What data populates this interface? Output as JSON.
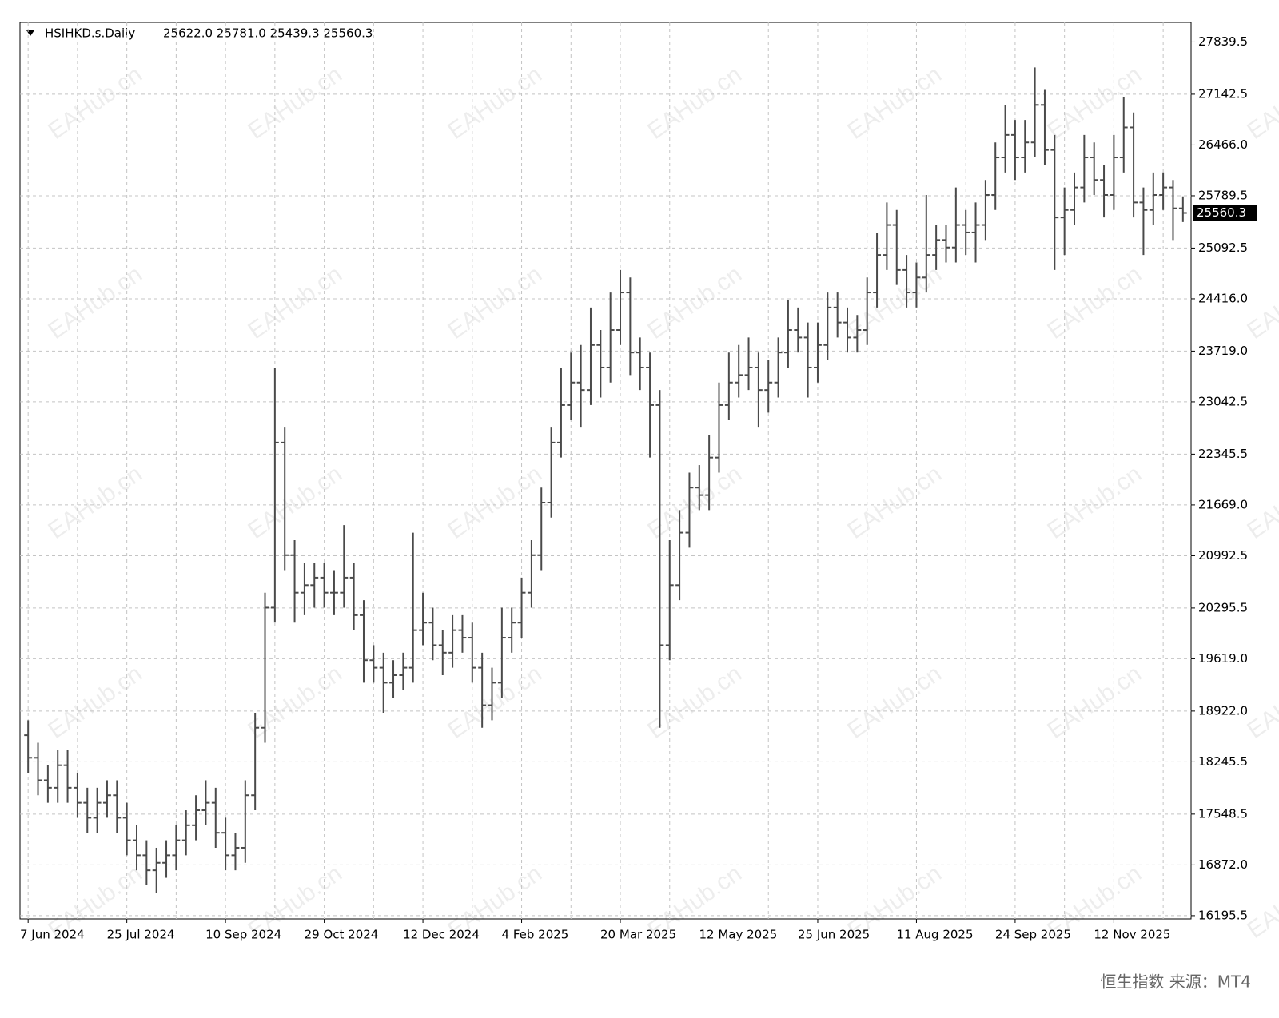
{
  "chart_data": {
    "type": "ohlc",
    "header": "HSIHKD.s.Daily",
    "header_values": "25622.0 25781.0 25439.3 25560.3",
    "watermark": "EAHub.cn",
    "footer": "恒生指数 来源：MT4",
    "color": "#4a4a4a",
    "grid": true,
    "current_price": {
      "value": 25560.3,
      "label": "25560.3"
    },
    "categories": [
      "7 Jun 2024",
      null,
      null,
      null,
      null,
      null,
      null,
      null,
      null,
      null,
      "25 Jul 2024",
      null,
      null,
      null,
      null,
      null,
      null,
      null,
      null,
      null,
      "10 Sep 2024",
      null,
      null,
      null,
      null,
      null,
      null,
      null,
      null,
      null,
      "29 Oct 2024",
      null,
      null,
      null,
      null,
      null,
      null,
      null,
      null,
      null,
      "12 Dec 2024",
      null,
      null,
      null,
      null,
      null,
      null,
      null,
      null,
      null,
      "4 Feb 2025",
      null,
      null,
      null,
      null,
      null,
      null,
      null,
      null,
      null,
      "20 Mar 2025",
      null,
      null,
      null,
      null,
      null,
      null,
      null,
      null,
      null,
      "12 May 2025",
      null,
      null,
      null,
      null,
      null,
      null,
      null,
      null,
      null,
      "25 Jun 2025",
      null,
      null,
      null,
      null,
      null,
      null,
      null,
      null,
      null,
      "11 Aug 2025",
      null,
      null,
      null,
      null,
      null,
      null,
      null,
      null,
      null,
      "24 Sep 2025",
      null,
      null,
      null,
      null,
      null,
      null,
      null,
      null,
      null,
      "12 Nov 2025",
      null,
      null,
      null,
      null,
      null,
      null,
      null
    ],
    "open": [
      18600,
      18300,
      18000,
      17900,
      18200,
      17900,
      17700,
      17500,
      17700,
      17800,
      17500,
      17200,
      17000,
      16800,
      16900,
      17000,
      17200,
      17400,
      17600,
      17700,
      17300,
      17000,
      17100,
      17800,
      18700,
      20300,
      22500,
      21000,
      20500,
      20600,
      20700,
      20500,
      20500,
      20700,
      20200,
      19600,
      19500,
      19300,
      19400,
      19500,
      20000,
      20100,
      19800,
      19700,
      20000,
      19900,
      19500,
      19000,
      19300,
      19900,
      20100,
      20500,
      21000,
      21700,
      22500,
      23000,
      23300,
      23200,
      23800,
      23500,
      24000,
      24500,
      23700,
      23500,
      23000,
      19800,
      20600,
      21300,
      21900,
      21800,
      22300,
      23000,
      23300,
      23400,
      23500,
      23200,
      23300,
      23700,
      24000,
      23900,
      23500,
      23800,
      24300,
      24100,
      23900,
      24000,
      24500,
      25000,
      25400,
      24800,
      24500,
      24700,
      25000,
      25200,
      25100,
      25400,
      25300,
      25400,
      25800,
      26300,
      26600,
      26300,
      26500,
      27000,
      26400,
      25500,
      25600,
      25900,
      26300,
      26000,
      25800,
      26300,
      26700,
      25700,
      25600,
      25800,
      25900,
      25622
    ],
    "high": [
      18800,
      18500,
      18200,
      18400,
      18400,
      18100,
      17900,
      17900,
      18000,
      18000,
      17700,
      17400,
      17200,
      17100,
      17200,
      17400,
      17600,
      17800,
      18000,
      17900,
      17500,
      17300,
      18000,
      18900,
      20500,
      23500,
      22700,
      21200,
      20900,
      20900,
      20900,
      20800,
      21400,
      20900,
      20400,
      19800,
      19700,
      19600,
      19700,
      21300,
      20500,
      20300,
      20000,
      20200,
      20200,
      20100,
      19700,
      19500,
      20300,
      20300,
      20700,
      21200,
      21900,
      22700,
      23500,
      23700,
      23800,
      24300,
      24000,
      24500,
      24800,
      24700,
      23900,
      23700,
      23200,
      21200,
      21600,
      22100,
      22200,
      22600,
      23300,
      23700,
      23800,
      23900,
      23700,
      23600,
      23900,
      24400,
      24300,
      24100,
      24100,
      24500,
      24500,
      24300,
      24200,
      24700,
      25300,
      25700,
      25600,
      25000,
      24900,
      25800,
      25400,
      25400,
      25900,
      25600,
      25700,
      26000,
      26500,
      27000,
      26800,
      26800,
      27500,
      27200,
      26600,
      25900,
      26100,
      26600,
      26500,
      26200,
      26600,
      27100,
      26900,
      25900,
      26100,
      26100,
      26000,
      25781
    ],
    "low": [
      18100,
      17800,
      17700,
      17700,
      17700,
      17500,
      17300,
      17300,
      17500,
      17300,
      17000,
      16800,
      16600,
      16500,
      16700,
      16800,
      17000,
      17200,
      17400,
      17100,
      16800,
      16800,
      16900,
      17600,
      18500,
      20100,
      20800,
      20100,
      20200,
      20300,
      20300,
      20200,
      20300,
      20000,
      19300,
      19300,
      18900,
      19100,
      19200,
      19300,
      19800,
      19600,
      19400,
      19500,
      19700,
      19300,
      18700,
      18800,
      19100,
      19700,
      19900,
      20300,
      20800,
      21500,
      22300,
      22800,
      22700,
      23000,
      23100,
      23300,
      23800,
      23400,
      23200,
      22300,
      18700,
      19600,
      20400,
      21100,
      21600,
      21600,
      22100,
      22800,
      23100,
      23200,
      22700,
      22900,
      23100,
      23500,
      23700,
      23100,
      23300,
      23600,
      23900,
      23700,
      23700,
      23800,
      24300,
      24800,
      24600,
      24300,
      24300,
      24500,
      24800,
      24900,
      24900,
      25000,
      24900,
      25200,
      25600,
      26100,
      26000,
      26100,
      26300,
      26200,
      24800,
      25000,
      25400,
      25700,
      25800,
      25500,
      25600,
      26100,
      25500,
      25000,
      25400,
      25600,
      25200,
      25439.3
    ],
    "close": [
      18300,
      18000,
      17900,
      18200,
      17900,
      17700,
      17500,
      17700,
      17800,
      17500,
      17200,
      17000,
      16800,
      16900,
      17000,
      17200,
      17400,
      17600,
      17700,
      17300,
      17000,
      17100,
      17800,
      18700,
      20300,
      22500,
      21000,
      20500,
      20600,
      20700,
      20500,
      20500,
      20700,
      20200,
      19600,
      19500,
      19300,
      19400,
      19500,
      20000,
      20100,
      19800,
      19700,
      20000,
      19900,
      19500,
      19000,
      19300,
      19900,
      20100,
      20500,
      21000,
      21700,
      22500,
      23000,
      23300,
      23200,
      23800,
      23500,
      24000,
      24500,
      23700,
      23500,
      23000,
      19800,
      20600,
      21300,
      21900,
      21800,
      22300,
      23000,
      23300,
      23400,
      23500,
      23200,
      23300,
      23700,
      24000,
      23900,
      23500,
      23800,
      24300,
      24100,
      23900,
      24000,
      24500,
      25000,
      25400,
      24800,
      24500,
      24700,
      25000,
      25200,
      25100,
      25400,
      25300,
      25400,
      25800,
      26300,
      26600,
      26300,
      26500,
      27000,
      26400,
      25500,
      25600,
      25900,
      26300,
      26000,
      25800,
      26300,
      26700,
      25700,
      25600,
      25800,
      25900,
      25622,
      25560.3
    ],
    "ylim": [
      16152,
      28100
    ],
    "yticks": [
      {
        "value": 16195.5,
        "label": "16195.5"
      },
      {
        "value": 16872,
        "label": "16872.0"
      },
      {
        "value": 17548.5,
        "label": "17548.5"
      },
      {
        "value": 18245.5,
        "label": "18245.5"
      },
      {
        "value": 18922,
        "label": "18922.0"
      },
      {
        "value": 19619,
        "label": "19619.0"
      },
      {
        "value": 20295.5,
        "label": "20295.5"
      },
      {
        "value": 20992.5,
        "label": "20992.5"
      },
      {
        "value": 21669,
        "label": "21669.0"
      },
      {
        "value": 22345.5,
        "label": "22345.5"
      },
      {
        "value": 23042.5,
        "label": "23042.5"
      },
      {
        "value": 23719,
        "label": "23719.0"
      },
      {
        "value": 24416,
        "label": "24416.0"
      },
      {
        "value": 25092.5,
        "label": "25092.5"
      },
      {
        "value": 25789.5,
        "label": "25789.5"
      },
      {
        "value": 26466,
        "label": "26466.0"
      },
      {
        "value": 27142.5,
        "label": "27142.5"
      },
      {
        "value": 27839.5,
        "label": "27839.5"
      }
    ]
  }
}
